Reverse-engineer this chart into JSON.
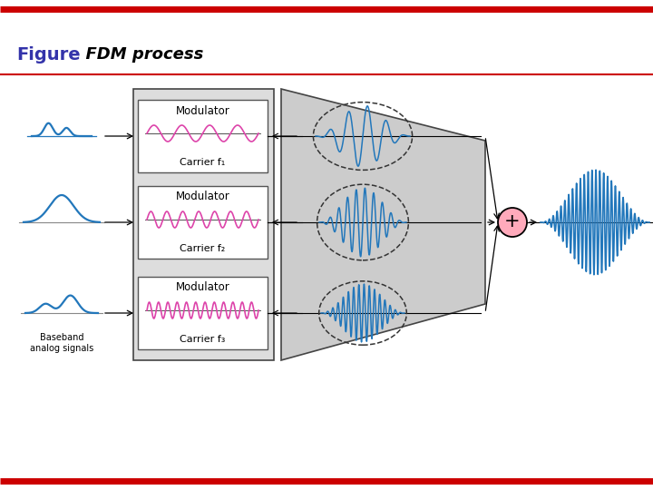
{
  "title_figure": "Figure",
  "title_text": "  FDM process",
  "figure_color": "#3333aa",
  "title_italic_color": "#000000",
  "bg_color": "#ffffff",
  "red_line_color": "#cc0000",
  "signal_color": "#2277bb",
  "carrier_color": "#dd44aa",
  "plus_circle_color": "#ffaabb",
  "box_bg": "#ffffff",
  "box_border": "#555555",
  "trap_bg": "#cccccc",
  "trap_border": "#444444",
  "baseband_label": "Baseband\nanalog signals",
  "modulator_labels": [
    "Modulator",
    "Modulator",
    "Modulator"
  ],
  "carrier_labels": [
    "Carrier f₁",
    "Carrier f₂",
    "Carrier f₃"
  ],
  "carrier_cycles": [
    4,
    7,
    12
  ]
}
